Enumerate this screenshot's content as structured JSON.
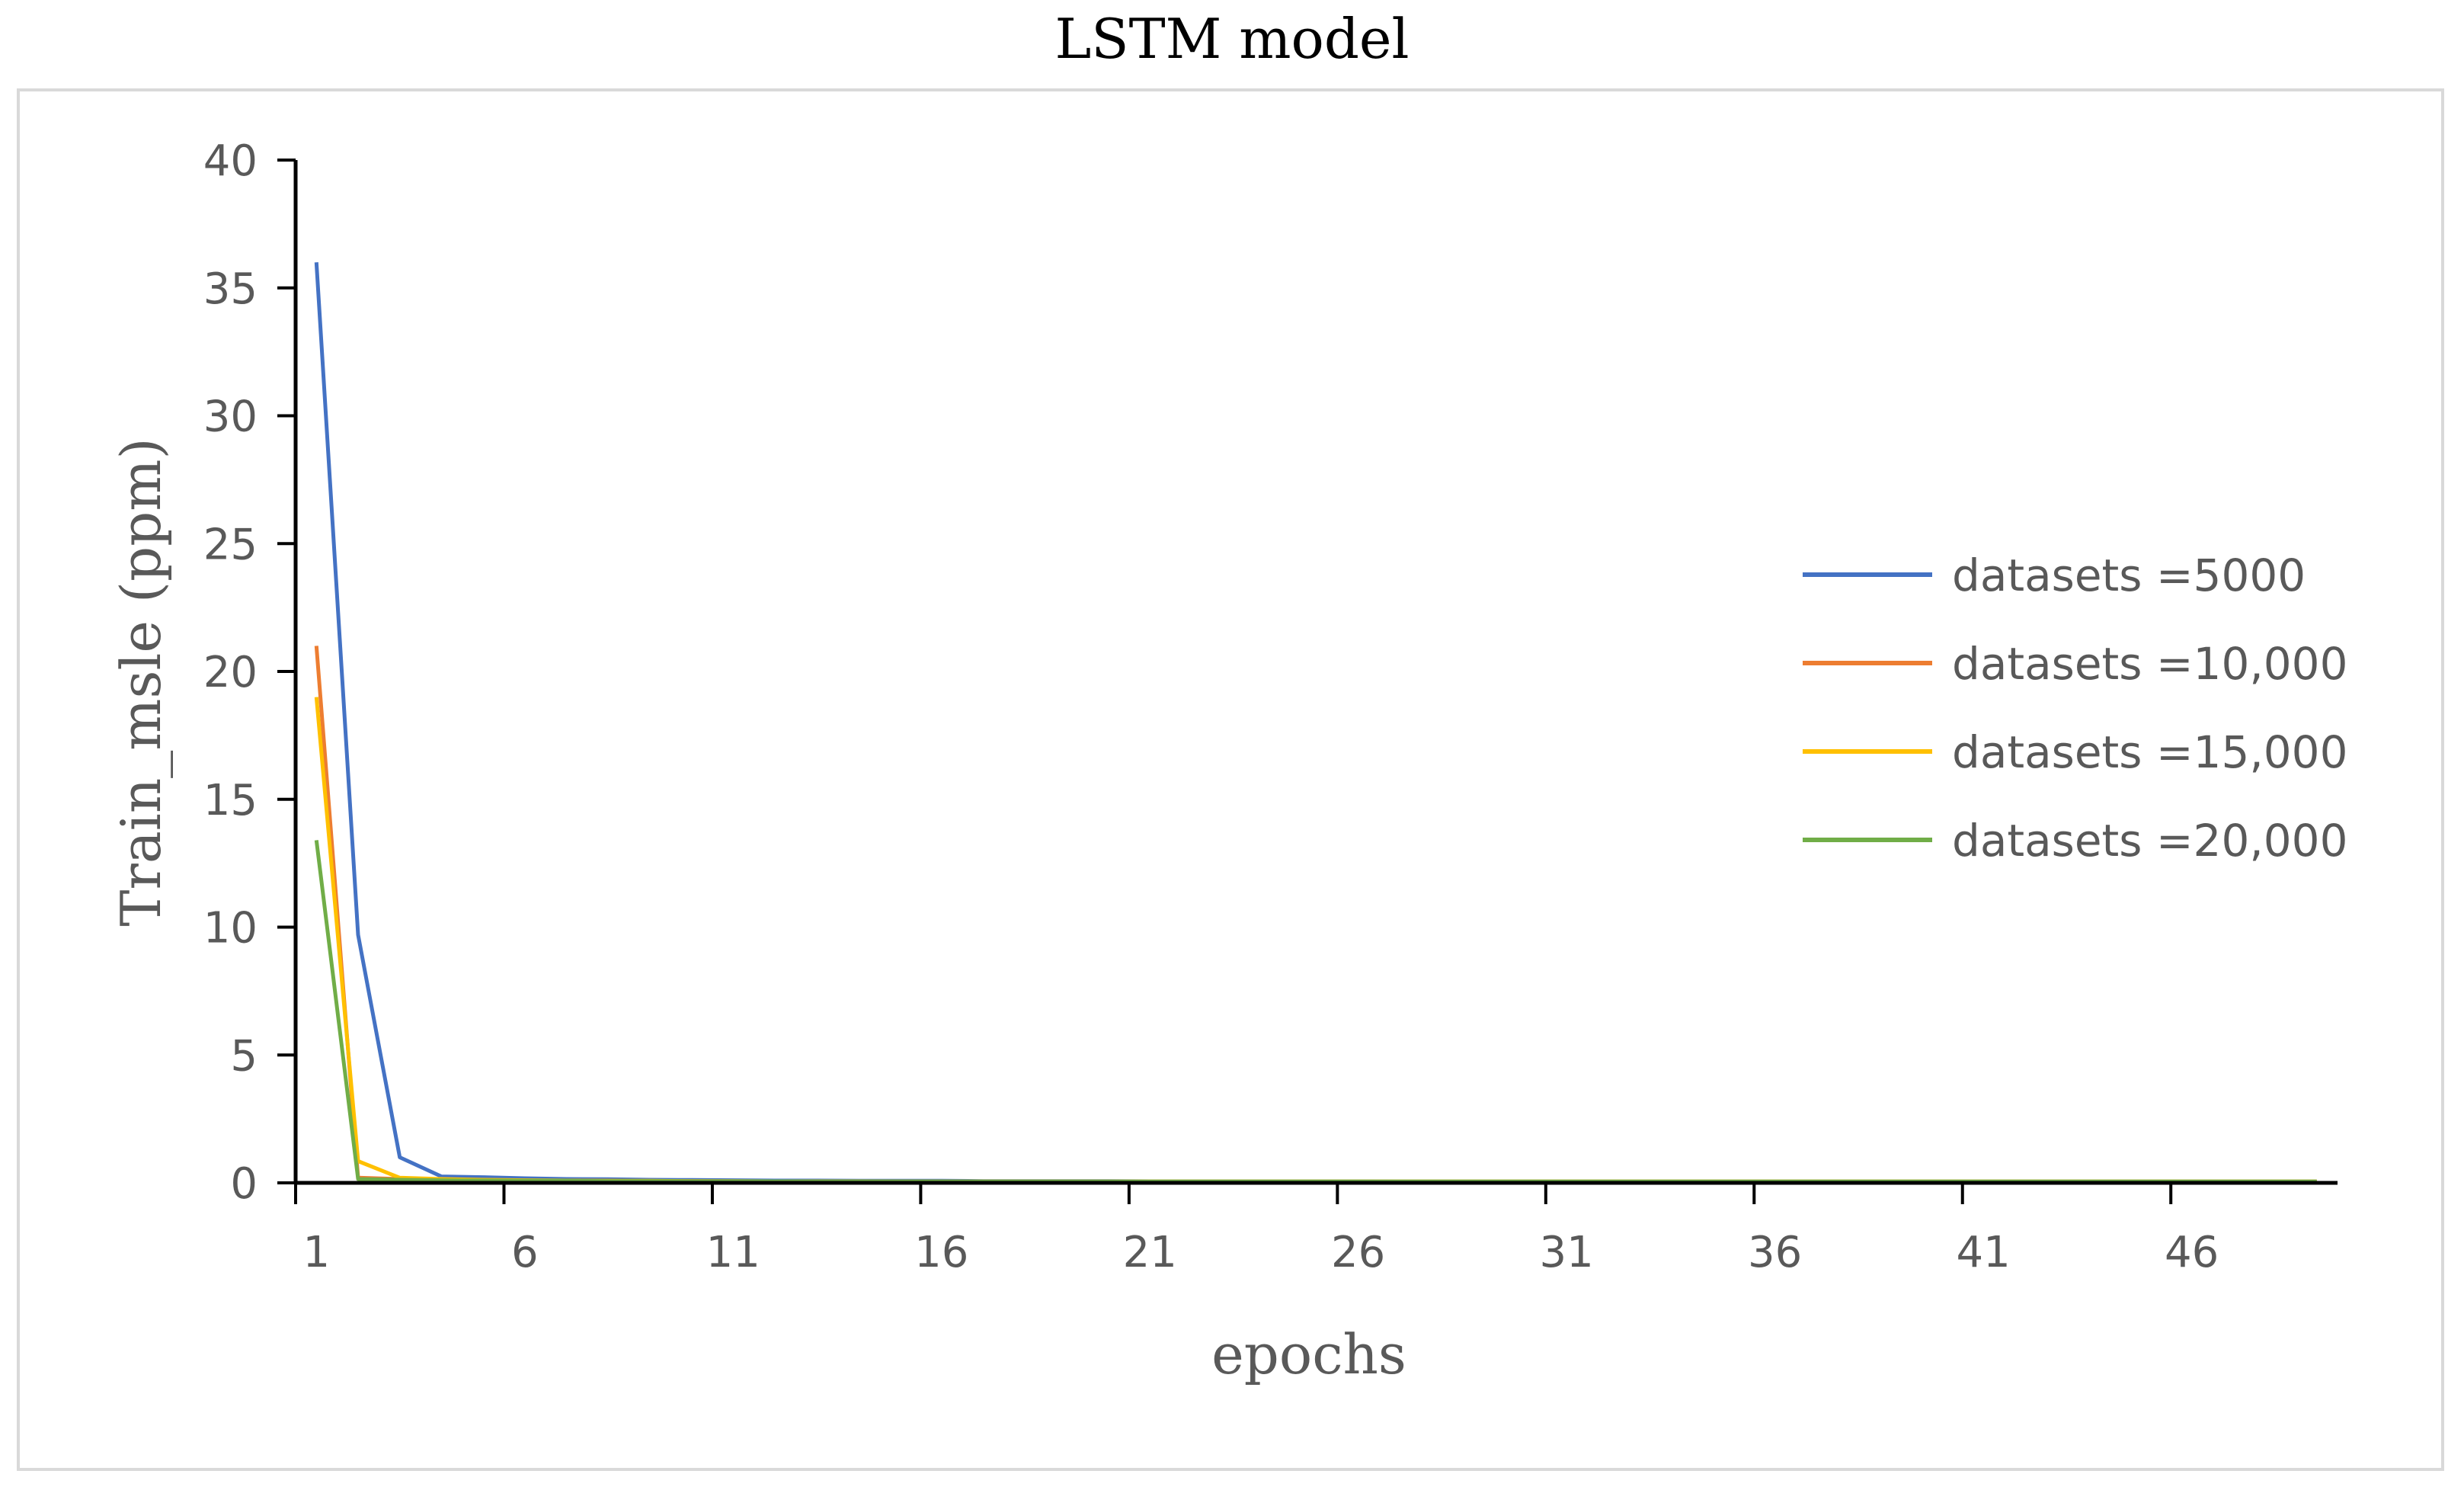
{
  "chart_data": {
    "type": "line",
    "title": "LSTM model",
    "xlabel": "epochs",
    "ylabel": "Train_msle (ppm)",
    "ylim": [
      0,
      40
    ],
    "yticks": [
      0,
      5,
      10,
      15,
      20,
      25,
      30,
      35,
      40
    ],
    "xlim": [
      0.5,
      49.5
    ],
    "xticks": [
      1,
      6,
      11,
      16,
      21,
      26,
      31,
      36,
      41,
      46
    ],
    "x": [
      1,
      2,
      3,
      4,
      5,
      6,
      7,
      8,
      9,
      10,
      11,
      12,
      13,
      14,
      15,
      16,
      17,
      18,
      19,
      20,
      21,
      22,
      23,
      24,
      25,
      26,
      27,
      28,
      29,
      30,
      31,
      32,
      33,
      34,
      35,
      36,
      37,
      38,
      39,
      40,
      41,
      42,
      43,
      44,
      45,
      46,
      47,
      48,
      49
    ],
    "legend_position": "right",
    "grid": false,
    "series": [
      {
        "name": "datasets =5000",
        "color": "#4472C4",
        "values": [
          36.0,
          9.7,
          1.0,
          0.25,
          0.22,
          0.18,
          0.15,
          0.14,
          0.12,
          0.11,
          0.1,
          0.09,
          0.09,
          0.08,
          0.08,
          0.08,
          0.07,
          0.07,
          0.07,
          0.07,
          0.06,
          0.06,
          0.06,
          0.06,
          0.06,
          0.06,
          0.05,
          0.05,
          0.05,
          0.05,
          0.05,
          0.05,
          0.05,
          0.05,
          0.05,
          0.05,
          0.05,
          0.05,
          0.05,
          0.05,
          0.05,
          0.05,
          0.05,
          0.05,
          0.05,
          0.05,
          0.05,
          0.05,
          0.05
        ]
      },
      {
        "name": "datasets =10,000",
        "color": "#ED7D31",
        "values": [
          21.0,
          0.2,
          0.15,
          0.12,
          0.1,
          0.09,
          0.08,
          0.08,
          0.07,
          0.07,
          0.06,
          0.06,
          0.06,
          0.05,
          0.05,
          0.05,
          0.05,
          0.05,
          0.05,
          0.05,
          0.05,
          0.05,
          0.05,
          0.05,
          0.05,
          0.05,
          0.05,
          0.05,
          0.05,
          0.05,
          0.05,
          0.05,
          0.05,
          0.05,
          0.05,
          0.05,
          0.05,
          0.05,
          0.05,
          0.05,
          0.05,
          0.05,
          0.05,
          0.05,
          0.05,
          0.05,
          0.05,
          0.05,
          0.05
        ]
      },
      {
        "name": "datasets =15,000",
        "color": "#FFC000",
        "values": [
          19.0,
          0.85,
          0.2,
          0.15,
          0.12,
          0.1,
          0.09,
          0.08,
          0.08,
          0.07,
          0.07,
          0.06,
          0.06,
          0.06,
          0.05,
          0.05,
          0.05,
          0.05,
          0.05,
          0.05,
          0.05,
          0.05,
          0.05,
          0.05,
          0.05,
          0.05,
          0.05,
          0.05,
          0.05,
          0.05,
          0.05,
          0.05,
          0.05,
          0.05,
          0.05,
          0.05,
          0.05,
          0.05,
          0.05,
          0.05,
          0.05,
          0.05,
          0.05,
          0.05,
          0.05,
          0.05,
          0.05,
          0.05,
          0.05
        ]
      },
      {
        "name": "datasets =20,000",
        "color": "#70AD47",
        "values": [
          13.4,
          0.15,
          0.12,
          0.1,
          0.09,
          0.08,
          0.08,
          0.07,
          0.07,
          0.06,
          0.06,
          0.06,
          0.05,
          0.05,
          0.05,
          0.05,
          0.05,
          0.05,
          0.05,
          0.05,
          0.05,
          0.05,
          0.05,
          0.05,
          0.05,
          0.05,
          0.05,
          0.05,
          0.05,
          0.05,
          0.05,
          0.05,
          0.05,
          0.05,
          0.05,
          0.05,
          0.05,
          0.05,
          0.05,
          0.05,
          0.05,
          0.05,
          0.05,
          0.05,
          0.05,
          0.05,
          0.05,
          0.05,
          0.05
        ]
      }
    ]
  }
}
